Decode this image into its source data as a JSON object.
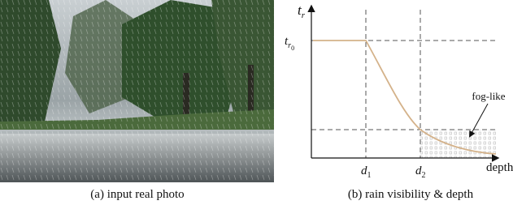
{
  "photo": {
    "caption": "(a) input real photo"
  },
  "diagram": {
    "caption": "(b) rain visibility & depth",
    "y_axis_label": {
      "base": "t",
      "sub": "r"
    },
    "level_label": {
      "base": "t",
      "sub": "r",
      "subsub": "0"
    },
    "d1": {
      "base": "d",
      "sub": "1"
    },
    "d2": {
      "base": "d",
      "sub": "2"
    },
    "x_axis_label": "depth",
    "annotation": "fog-like"
  }
}
